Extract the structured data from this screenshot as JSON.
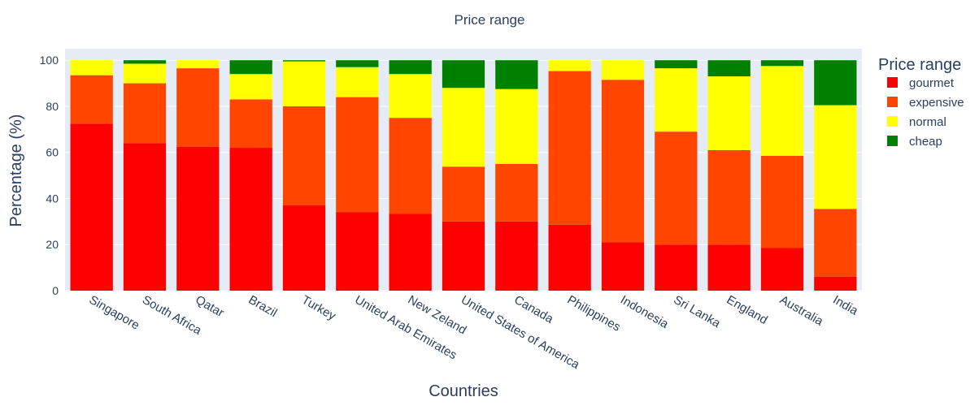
{
  "chart_data": {
    "type": "bar",
    "stacked": true,
    "title": "Price range",
    "xlabel": "Countries",
    "ylabel": "Percentage (%)",
    "ylim": [
      0,
      105
    ],
    "yticks": [
      0,
      20,
      40,
      60,
      80,
      100
    ],
    "grid": true,
    "legend_position": "right",
    "legend_title": "Price range",
    "categories": [
      "Singapore",
      "South Africa",
      "Qatar",
      "Brazil",
      "Turkey",
      "United Arab Emirates",
      "New Zeland",
      "United States of America",
      "Canada",
      "Philippines",
      "Indonesia",
      "Sri Lanka",
      "England",
      "Australia",
      "India"
    ],
    "series": [
      {
        "name": "gourmet",
        "color": "#ff0000",
        "values": [
          72.5,
          64.0,
          62.5,
          62.0,
          37.0,
          34.0,
          33.3,
          30.0,
          30.0,
          28.6,
          21.0,
          20.0,
          20.0,
          18.5,
          6.0
        ]
      },
      {
        "name": "expensive",
        "color": "#ff4500",
        "values": [
          21.0,
          26.0,
          34.0,
          21.0,
          43.0,
          50.0,
          41.7,
          23.8,
          25.0,
          66.7,
          70.5,
          49.0,
          41.0,
          40.0,
          29.5
        ]
      },
      {
        "name": "normal",
        "color": "#ffff00",
        "values": [
          6.5,
          8.5,
          3.5,
          11.0,
          19.5,
          13.0,
          19.0,
          34.2,
          32.5,
          4.7,
          8.5,
          27.5,
          32.0,
          39.0,
          45.0
        ]
      },
      {
        "name": "cheap",
        "color": "#008000",
        "values": [
          0,
          1.5,
          0,
          6.0,
          0.5,
          3.0,
          6.0,
          12.0,
          12.5,
          0,
          0,
          3.5,
          7.0,
          2.5,
          19.5
        ]
      }
    ],
    "colors": {
      "plot_bg": "#e5ecf6",
      "grid": "#ffffff",
      "text": "#2a3f5f"
    }
  }
}
